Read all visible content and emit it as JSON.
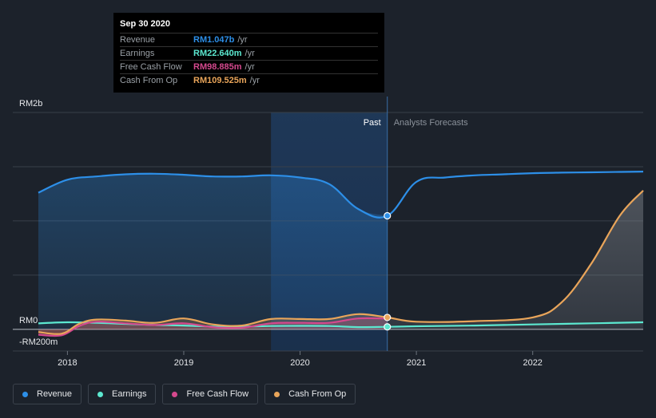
{
  "chart_data": {
    "type": "line",
    "y_unit_labels": {
      "top": "RM2b",
      "zero": "RM0",
      "bottom": "-RM200m"
    },
    "ylim": [
      -200,
      2000
    ],
    "xlim": [
      2017.75,
      2022.95
    ],
    "x_ticks": [
      {
        "value": 2018,
        "label": "2018"
      },
      {
        "value": 2019,
        "label": "2019"
      },
      {
        "value": 2020,
        "label": "2020"
      },
      {
        "value": 2021,
        "label": "2021"
      },
      {
        "value": 2022,
        "label": "2022"
      }
    ],
    "past_label": "Past",
    "forecast_label": "Analysts Forecasts",
    "divider_x": 2020.75,
    "highlight_start_x": 2019.75,
    "series": [
      {
        "name": "Revenue",
        "color": "#2d8fe8",
        "x": [
          2017.75,
          2018.0,
          2018.25,
          2018.5,
          2018.75,
          2019.0,
          2019.25,
          2019.5,
          2019.75,
          2020.0,
          2020.25,
          2020.5,
          2020.75,
          2021.0,
          2021.25,
          2021.5,
          2021.75,
          2022.0,
          2022.25,
          2022.5,
          2022.75,
          2022.95
        ],
        "y": [
          1260,
          1380,
          1410,
          1430,
          1435,
          1425,
          1410,
          1410,
          1420,
          1400,
          1340,
          1110,
          1047,
          1360,
          1400,
          1420,
          1430,
          1440,
          1445,
          1448,
          1452,
          1455
        ]
      },
      {
        "name": "Earnings",
        "color": "#5ce8d0",
        "x": [
          2017.75,
          2018.0,
          2018.25,
          2018.5,
          2018.75,
          2019.0,
          2019.25,
          2019.5,
          2019.75,
          2020.0,
          2020.25,
          2020.5,
          2020.75,
          2021.0,
          2021.5,
          2022.0,
          2022.5,
          2022.95
        ],
        "y": [
          55,
          65,
          60,
          50,
          40,
          35,
          25,
          25,
          30,
          32,
          30,
          20,
          22.64,
          28,
          35,
          45,
          55,
          65
        ]
      },
      {
        "name": "Free Cash Flow",
        "color": "#d5498e",
        "x": [
          2017.75,
          2017.95,
          2018.1,
          2018.25,
          2018.5,
          2018.75,
          2019.0,
          2019.25,
          2019.5,
          2019.75,
          2020.0,
          2020.25,
          2020.5,
          2020.75
        ],
        "y": [
          -50,
          -55,
          30,
          70,
          55,
          40,
          55,
          20,
          15,
          55,
          60,
          60,
          100,
          98.885
        ]
      },
      {
        "name": "Cash From Op",
        "color": "#e9a55a",
        "x": [
          2017.75,
          2017.95,
          2018.1,
          2018.25,
          2018.5,
          2018.75,
          2019.0,
          2019.25,
          2019.5,
          2019.75,
          2020.0,
          2020.25,
          2020.5,
          2020.75,
          2021.0,
          2021.5,
          2022.0,
          2022.25,
          2022.5,
          2022.75,
          2022.95
        ],
        "y": [
          -25,
          -40,
          50,
          90,
          80,
          60,
          100,
          45,
          35,
          95,
          95,
          95,
          140,
          109.525,
          70,
          75,
          110,
          250,
          600,
          1050,
          1280
        ]
      }
    ],
    "highlight_points": [
      {
        "series": "Revenue",
        "x": 2020.75,
        "y": 1047
      },
      {
        "series": "Earnings",
        "x": 2020.75,
        "y": 22.64
      },
      {
        "series": "Cash From Op",
        "x": 2020.75,
        "y": 109.525
      }
    ]
  },
  "tooltip": {
    "date": "Sep 30 2020",
    "rows": [
      {
        "label": "Revenue",
        "value": "RM1.047b",
        "unit": "/yr",
        "color": "#2d8fe8"
      },
      {
        "label": "Earnings",
        "value": "RM22.640m",
        "unit": "/yr",
        "color": "#5ce8d0"
      },
      {
        "label": "Free Cash Flow",
        "value": "RM98.885m",
        "unit": "/yr",
        "color": "#d5498e"
      },
      {
        "label": "Cash From Op",
        "value": "RM109.525m",
        "unit": "/yr",
        "color": "#e9a55a"
      }
    ]
  },
  "legend": [
    {
      "label": "Revenue",
      "color": "#2d8fe8"
    },
    {
      "label": "Earnings",
      "color": "#5ce8d0"
    },
    {
      "label": "Free Cash Flow",
      "color": "#d5498e"
    },
    {
      "label": "Cash From Op",
      "color": "#e9a55a"
    }
  ]
}
